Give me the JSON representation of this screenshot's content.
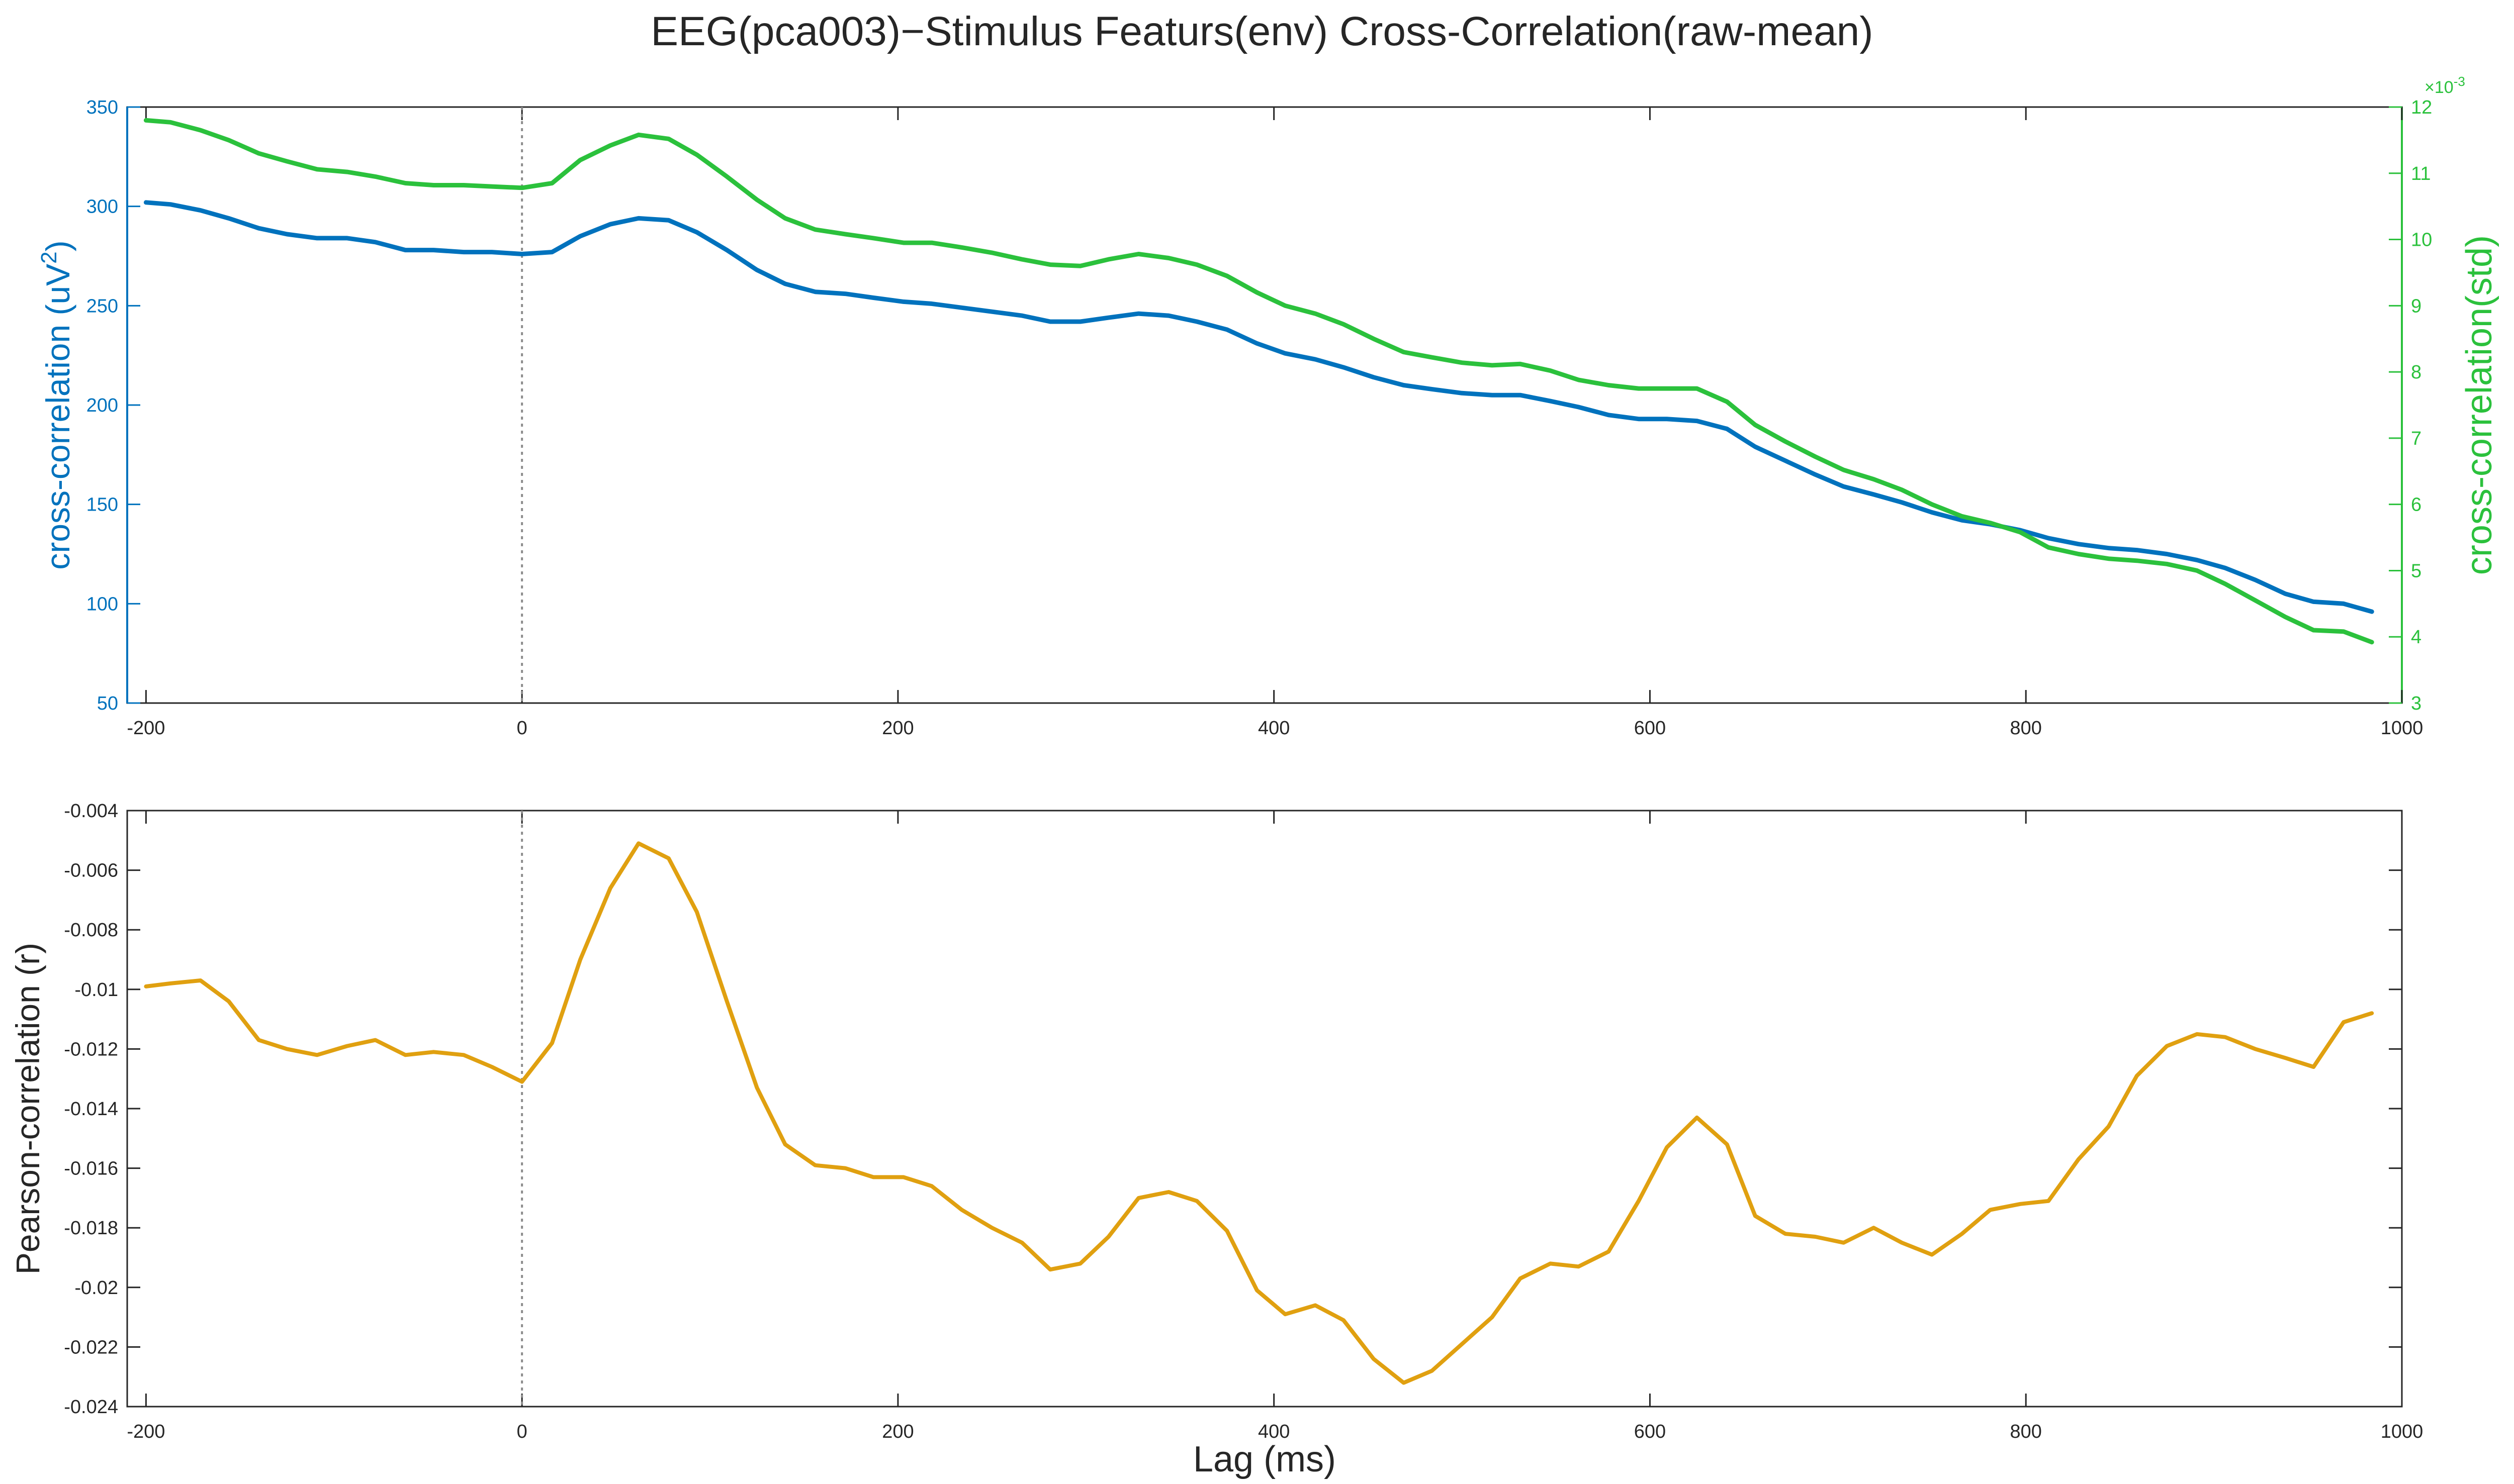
{
  "figure": {
    "title": "EEG(pca003)−Stimulus Featurs(env) Cross-Correlation(raw-mean)"
  },
  "colors": {
    "blue": "#0072BD",
    "green": "#2BC13C",
    "orange": "#E0A010",
    "axis": "#262626",
    "zero_line": "#8c8c8c"
  },
  "chart_data": [
    {
      "type": "line",
      "title": "EEG(pca003)−Stimulus Featurs(env) Cross-Correlation(raw-mean)",
      "xlabel": "",
      "ylabel_left": "cross-correlation (uV",
      "ylabel_left_sup": "2",
      "ylabel_left_close": ")",
      "ylabel_right": "cross-correlation(std)",
      "right_exponent_base": "×10",
      "right_exponent": "-3",
      "xlim": [
        -210,
        1000
      ],
      "ylim_left": [
        50,
        350
      ],
      "ylim_right": [
        3,
        12
      ],
      "xticks": [
        -200,
        0,
        200,
        400,
        600,
        800,
        1000
      ],
      "yticks_left": [
        50,
        100,
        150,
        200,
        250,
        300,
        350
      ],
      "yticks_right": [
        3,
        4,
        5,
        6,
        7,
        8,
        9,
        10,
        11,
        12
      ],
      "grid": false,
      "zero_line_x": 0,
      "x": [
        -200,
        -187,
        -171,
        -156,
        -140,
        -125,
        -109,
        -93,
        -78,
        -62,
        -47,
        -31,
        -16,
        0,
        16,
        31,
        47,
        62,
        78,
        93,
        109,
        125,
        140,
        156,
        172,
        187,
        203,
        218,
        234,
        250,
        266,
        281,
        297,
        312,
        328,
        344,
        359,
        375,
        391,
        406,
        422,
        437,
        453,
        469,
        484,
        500,
        516,
        531,
        547,
        562,
        578,
        594,
        609,
        625,
        641,
        656,
        672,
        688,
        703,
        719,
        734,
        750,
        766,
        781,
        797,
        812,
        828,
        844,
        859,
        875,
        891,
        906,
        922,
        938,
        953,
        969,
        984
      ],
      "series": [
        {
          "axis": "left",
          "color": "#0072BD",
          "values": [
            302,
            301,
            298,
            294,
            289,
            286,
            284,
            284,
            282,
            278,
            278,
            277,
            277,
            276,
            277,
            285,
            291,
            294,
            293,
            287,
            278,
            268,
            261,
            257,
            256,
            254,
            252,
            251,
            249,
            247,
            245,
            242,
            242,
            244,
            246,
            245,
            242,
            238,
            231,
            226,
            223,
            219,
            214,
            210,
            208,
            206,
            205,
            205,
            202,
            199,
            195,
            193,
            193,
            192,
            188,
            179,
            172,
            165,
            159,
            155,
            151,
            146,
            142,
            140,
            137,
            133,
            130,
            128,
            127,
            125,
            122,
            118,
            112,
            105,
            101,
            100,
            96
          ]
        },
        {
          "axis": "right",
          "color": "#2BC13C",
          "values": [
            11.8,
            11.77,
            11.65,
            11.5,
            11.3,
            11.18,
            11.06,
            11.02,
            10.95,
            10.85,
            10.82,
            10.82,
            10.8,
            10.78,
            10.85,
            11.2,
            11.42,
            11.58,
            11.52,
            11.28,
            10.95,
            10.6,
            10.32,
            10.15,
            10.08,
            10.02,
            9.95,
            9.95,
            9.88,
            9.8,
            9.7,
            9.62,
            9.6,
            9.7,
            9.78,
            9.72,
            9.62,
            9.45,
            9.2,
            9.0,
            8.88,
            8.72,
            8.5,
            8.3,
            8.22,
            8.14,
            8.1,
            8.12,
            8.02,
            7.88,
            7.8,
            7.75,
            7.75,
            7.75,
            7.55,
            7.2,
            6.95,
            6.72,
            6.52,
            6.38,
            6.22,
            6.0,
            5.82,
            5.72,
            5.58,
            5.35,
            5.25,
            5.18,
            5.15,
            5.1,
            5.0,
            4.8,
            4.55,
            4.3,
            4.1,
            4.08,
            3.92
          ]
        }
      ]
    },
    {
      "type": "line",
      "xlabel": "Lag (ms)",
      "ylabel": "Pearson-correlation (r)",
      "xlim": [
        -210,
        1000
      ],
      "ylim": [
        -0.024,
        -0.004
      ],
      "xticks": [
        -200,
        0,
        200,
        400,
        600,
        800,
        1000
      ],
      "yticks": [
        -0.024,
        -0.022,
        -0.02,
        -0.018,
        -0.016,
        -0.014,
        -0.012,
        -0.01,
        -0.008,
        -0.006,
        -0.004
      ],
      "ytick_labels": [
        "-0.024",
        "-0.022",
        "-0.02",
        "-0.018",
        "-0.016",
        "-0.014",
        "-0.012",
        "-0.01",
        "-0.008",
        "-0.006",
        "-0.004"
      ],
      "grid": false,
      "zero_line_x": 0,
      "x": [
        -200,
        -187,
        -171,
        -156,
        -140,
        -125,
        -109,
        -93,
        -78,
        -62,
        -47,
        -31,
        -16,
        0,
        16,
        31,
        47,
        62,
        78,
        93,
        109,
        125,
        140,
        156,
        172,
        187,
        203,
        218,
        234,
        250,
        266,
        281,
        297,
        312,
        328,
        344,
        359,
        375,
        391,
        406,
        422,
        437,
        453,
        469,
        484,
        500,
        516,
        531,
        547,
        562,
        578,
        594,
        609,
        625,
        641,
        656,
        672,
        688,
        703,
        719,
        734,
        750,
        766,
        781,
        797,
        812,
        828,
        844,
        859,
        875,
        891,
        906,
        922,
        938,
        953,
        969,
        984
      ],
      "series": [
        {
          "color": "#E0A010",
          "values": [
            -0.0099,
            -0.0098,
            -0.0097,
            -0.0104,
            -0.0117,
            -0.012,
            -0.0122,
            -0.0119,
            -0.0117,
            -0.0122,
            -0.0121,
            -0.0122,
            -0.0126,
            -0.0131,
            -0.0118,
            -0.009,
            -0.0066,
            -0.0051,
            -0.0056,
            -0.0074,
            -0.0104,
            -0.0133,
            -0.0152,
            -0.0159,
            -0.016,
            -0.0163,
            -0.0163,
            -0.0166,
            -0.0174,
            -0.018,
            -0.0185,
            -0.0194,
            -0.0192,
            -0.0183,
            -0.017,
            -0.0168,
            -0.0171,
            -0.0181,
            -0.0201,
            -0.0209,
            -0.0206,
            -0.0211,
            -0.0224,
            -0.0232,
            -0.0228,
            -0.0219,
            -0.021,
            -0.0197,
            -0.0192,
            -0.0193,
            -0.0188,
            -0.0171,
            -0.0153,
            -0.0143,
            -0.0152,
            -0.0176,
            -0.0182,
            -0.0183,
            -0.0185,
            -0.018,
            -0.0185,
            -0.0189,
            -0.0182,
            -0.0174,
            -0.0172,
            -0.0171,
            -0.0157,
            -0.0146,
            -0.0129,
            -0.0119,
            -0.0115,
            -0.0116,
            -0.012,
            -0.0123,
            -0.0126,
            -0.0111,
            -0.0108
          ]
        }
      ]
    }
  ]
}
